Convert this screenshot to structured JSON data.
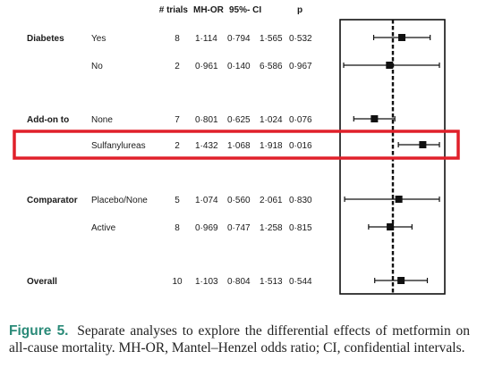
{
  "chart_data": {
    "type": "forest",
    "columns": {
      "trials": "# trials",
      "mh_or": "MH-OR",
      "ci": "95%- CI",
      "p": "p"
    },
    "rows": [
      {
        "group": "Diabetes",
        "subgroup": "Yes",
        "trials": "8",
        "or": "1·114",
        "lo": "0·794",
        "hi": "1·565",
        "p": "0·532",
        "or_val": 1.114,
        "lo_val": 0.794,
        "hi_val": 1.565
      },
      {
        "group": "",
        "subgroup": "No",
        "trials": "2",
        "or": "0·961",
        "lo": "0·140",
        "hi": "6·586",
        "p": "0·967",
        "or_val": 0.961,
        "lo_val": 0.14,
        "hi_val": 6.586
      },
      {
        "group": "Add-on to",
        "subgroup": "None",
        "trials": "7",
        "or": "0·801",
        "lo": "0·625",
        "hi": "1·024",
        "p": "0·076",
        "or_val": 0.801,
        "lo_val": 0.625,
        "hi_val": 1.024
      },
      {
        "group": "",
        "subgroup": "Sulfanylureas",
        "trials": "2",
        "or": "1·432",
        "lo": "1·068",
        "hi": "1·918",
        "p": "0·016",
        "or_val": 1.432,
        "lo_val": 1.068,
        "hi_val": 1.918,
        "highlight": true
      },
      {
        "group": "Comparator",
        "subgroup": "Placebo/None",
        "trials": "5",
        "or": "1·074",
        "lo": "0·560",
        "hi": "2·061",
        "p": "0·830",
        "or_val": 1.074,
        "lo_val": 0.56,
        "hi_val": 2.061
      },
      {
        "group": "",
        "subgroup": "Active",
        "trials": "8",
        "or": "0·969",
        "lo": "0·747",
        "hi": "1·258",
        "p": "0·815",
        "or_val": 0.969,
        "lo_val": 0.747,
        "hi_val": 1.258
      },
      {
        "group": "Overall",
        "subgroup": "",
        "trials": "10",
        "or": "1·103",
        "lo": "0·804",
        "hi": "1·513",
        "p": "0·544",
        "or_val": 1.103,
        "lo_val": 0.804,
        "hi_val": 1.513
      }
    ],
    "scale": "log",
    "reference_line": 1,
    "highlight_color": "#e0202a"
  },
  "caption": {
    "label": "Figure 5.",
    "text": "Separate analyses to explore the differential effects of metformin on all-cause mortality. MH-OR, Mantel–Henzel odds ratio; CI, confidential intervals."
  }
}
